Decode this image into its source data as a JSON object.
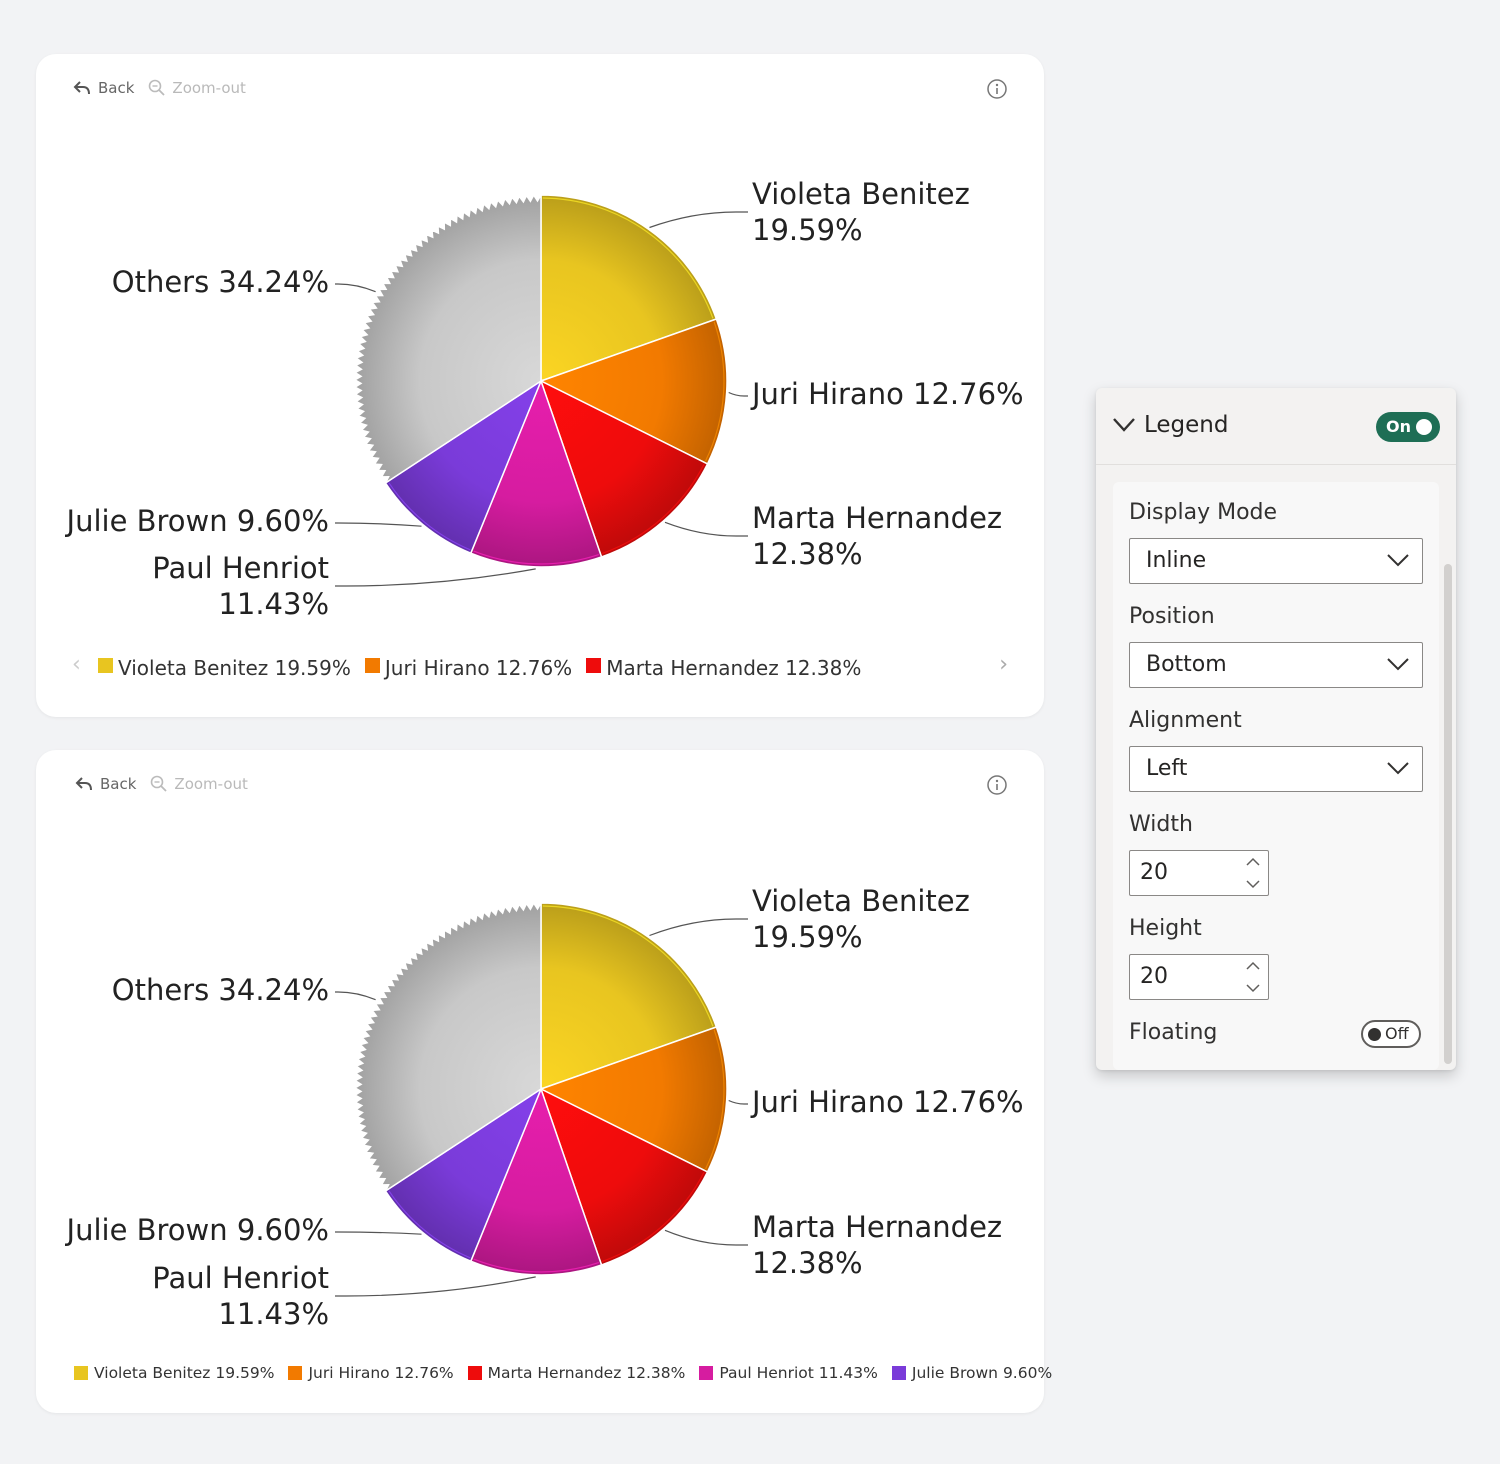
{
  "toolbar": {
    "back_label": "Back",
    "zoom_label": "Zoom-out"
  },
  "chart_data": [
    {
      "type": "pie",
      "slices": [
        {
          "label": "Violeta Benitez",
          "value": 19.59,
          "display": "19.59%",
          "color": "#e8c520"
        },
        {
          "label": "Juri Hirano",
          "value": 12.76,
          "display": "12.76%",
          "color": "#f27a00"
        },
        {
          "label": "Marta Hernandez",
          "value": 12.38,
          "display": "12.38%",
          "color": "#ee0c0c"
        },
        {
          "label": "Paul Henriot",
          "value": 11.43,
          "display": "11.43%",
          "color": "#d61ca0"
        },
        {
          "label": "Julie Brown",
          "value": 9.6,
          "display": "9.60%",
          "color": "#7a3bd9"
        },
        {
          "label": "Others",
          "value": 34.24,
          "display": "34.24%",
          "color": "#c8c8c8"
        }
      ],
      "legend": {
        "position": "bottom",
        "items": [
          "Violeta Benitez 19.59%",
          "Juri Hirano 12.76%",
          "Marta Hernandez 12.38%"
        ],
        "colors": [
          "#e8c520",
          "#f27a00",
          "#ee0c0c"
        ]
      }
    },
    {
      "type": "pie",
      "slices": [
        {
          "label": "Violeta Benitez",
          "value": 19.59,
          "display": "19.59%",
          "color": "#e8c520"
        },
        {
          "label": "Juri Hirano",
          "value": 12.76,
          "display": "12.76%",
          "color": "#f27a00"
        },
        {
          "label": "Marta Hernandez",
          "value": 12.38,
          "display": "12.38%",
          "color": "#ee0c0c"
        },
        {
          "label": "Paul Henriot",
          "value": 11.43,
          "display": "11.43%",
          "color": "#d61ca0"
        },
        {
          "label": "Julie Brown",
          "value": 9.6,
          "display": "9.60%",
          "color": "#7a3bd9"
        },
        {
          "label": "Others",
          "value": 34.24,
          "display": "34.24%",
          "color": "#c8c8c8"
        }
      ],
      "legend": {
        "position": "bottom",
        "items": [
          "Violeta Benitez 19.59%",
          "Juri Hirano 12.76%",
          "Marta Hernandez 12.38%",
          "Paul Henriot 11.43%",
          "Julie Brown 9.60%"
        ],
        "colors": [
          "#e8c520",
          "#f27a00",
          "#ee0c0c",
          "#d61ca0",
          "#7a3bd9"
        ]
      }
    }
  ],
  "panel": {
    "title": "Legend",
    "legend_toggle": "On",
    "display_mode": {
      "label": "Display Mode",
      "value": "Inline"
    },
    "position": {
      "label": "Position",
      "value": "Bottom"
    },
    "alignment": {
      "label": "Alignment",
      "value": "Left"
    },
    "width": {
      "label": "Width",
      "value": "20"
    },
    "height": {
      "label": "Height",
      "value": "20"
    },
    "floating": {
      "label": "Floating",
      "value": "Off"
    }
  }
}
